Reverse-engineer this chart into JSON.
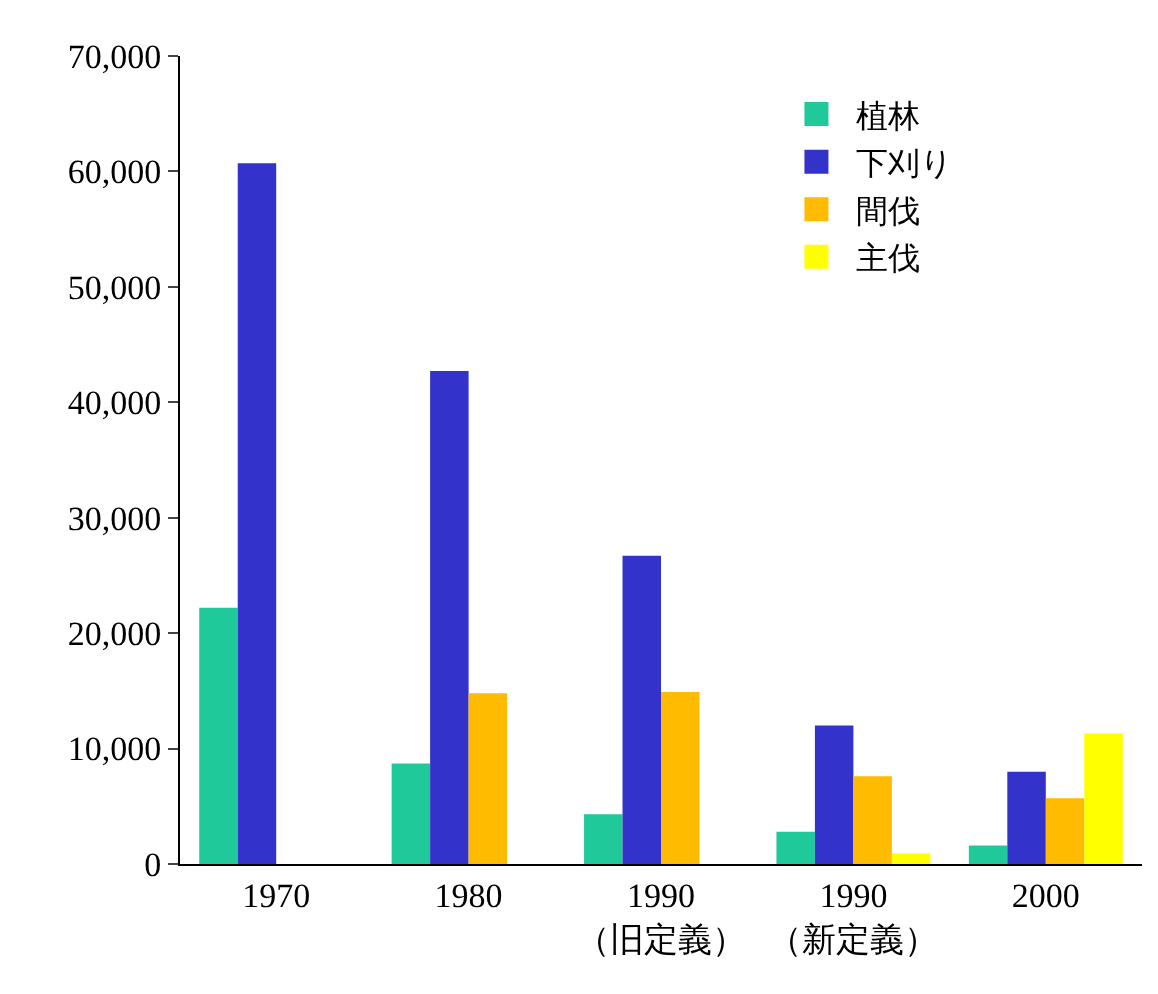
{
  "chart_data": {
    "type": "bar",
    "categories": [
      "1970",
      "1980",
      "1990\n（旧定義）",
      "1990\n（新定義）",
      "2000"
    ],
    "series": [
      {
        "name": "植林",
        "color": "#1fc99a",
        "values": [
          22200,
          8700,
          4300,
          2800,
          1600
        ]
      },
      {
        "name": "下刈り",
        "color": "#3333cc",
        "values": [
          60700,
          42700,
          26700,
          12000,
          8000
        ]
      },
      {
        "name": "間伐",
        "color": "#ffbb00",
        "values": [
          null,
          14800,
          14900,
          7600,
          5700
        ]
      },
      {
        "name": "主伐",
        "color": "#ffff00",
        "values": [
          null,
          null,
          null,
          900,
          11300
        ]
      }
    ],
    "ylim": [
      0,
      70000
    ],
    "yticks": [
      {
        "value": 0,
        "label": "0"
      },
      {
        "value": 10000,
        "label": "10,000"
      },
      {
        "value": 20000,
        "label": "20,000"
      },
      {
        "value": 30000,
        "label": "30,000"
      },
      {
        "value": 40000,
        "label": "40,000"
      },
      {
        "value": 50000,
        "label": "50,000"
      },
      {
        "value": 60000,
        "label": "60,000"
      },
      {
        "value": 70000,
        "label": "70,000"
      }
    ],
    "legend": "top right"
  }
}
